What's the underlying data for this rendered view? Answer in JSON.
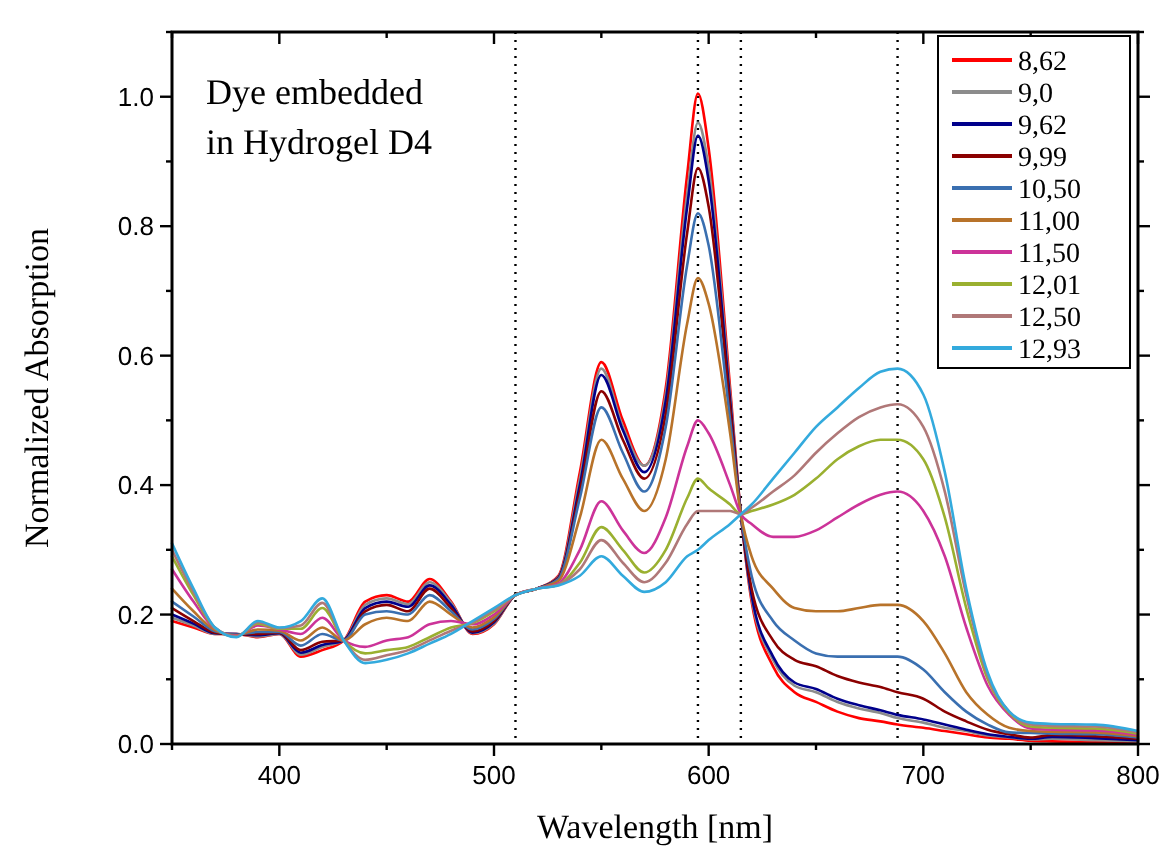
{
  "chart_data": {
    "type": "line",
    "xlabel": "Wavelength [nm]",
    "ylabel": "Normalized Absorption",
    "annotations": [
      "Dye embedded\nin Hydrogel D4"
    ],
    "xlim": [
      350,
      800
    ],
    "ylim": [
      0,
      1.1
    ],
    "xticks": [
      {
        "value": 350,
        "label": null
      },
      400,
      {
        "value": 450,
        "label": null
      },
      500,
      {
        "value": 550,
        "label": null
      },
      600,
      {
        "value": 650,
        "label": null
      },
      700,
      {
        "value": 750,
        "label": null
      },
      800
    ],
    "yticks": [
      {
        "value": 0,
        "label": "0.0"
      },
      {
        "value": 0.1,
        "label": null
      },
      0.2,
      {
        "value": 0.3,
        "label": null
      },
      0.4,
      {
        "value": 0.5,
        "label": null
      },
      0.6,
      {
        "value": 0.7,
        "label": null
      },
      0.8,
      {
        "value": 0.9,
        "label": null
      },
      {
        "value": 1.0,
        "label": "1.0"
      },
      {
        "value": 1.1,
        "label": null
      }
    ],
    "grid": false,
    "legend": "top right",
    "marker": "none",
    "line_style": "solid",
    "ref_lines": [
      {
        "axis": "x",
        "value": 510,
        "color": "#000000",
        "line_style": "dotted"
      },
      {
        "axis": "x",
        "value": 595,
        "color": "#000000",
        "line_style": "dotted"
      },
      {
        "axis": "x",
        "value": 615,
        "color": "#000000",
        "line_style": "dotted"
      },
      {
        "axis": "x",
        "value": 688,
        "color": "#000000",
        "line_style": "dotted"
      }
    ],
    "x": [
      350,
      360,
      370,
      380,
      390,
      400,
      410,
      420,
      430,
      440,
      450,
      460,
      470,
      480,
      490,
      500,
      510,
      520,
      530,
      540,
      550,
      560,
      570,
      580,
      590,
      595,
      600,
      610,
      615,
      620,
      630,
      640,
      650,
      660,
      670,
      680,
      688,
      700,
      710,
      720,
      730,
      740,
      750,
      760,
      780,
      800
    ],
    "series": [
      {
        "name": "8,62",
        "color": "#ff0000",
        "values": [
          0.19,
          0.18,
          0.17,
          0.17,
          0.165,
          0.17,
          0.135,
          0.145,
          0.16,
          0.22,
          0.23,
          0.22,
          0.255,
          0.22,
          0.17,
          0.185,
          0.23,
          0.24,
          0.26,
          0.42,
          0.59,
          0.5,
          0.43,
          0.55,
          0.88,
          1.005,
          0.92,
          0.55,
          0.355,
          0.22,
          0.12,
          0.08,
          0.065,
          0.05,
          0.04,
          0.035,
          0.03,
          0.025,
          0.02,
          0.015,
          0.01,
          0.008,
          0.005,
          0.004,
          0.003,
          0.001
        ]
      },
      {
        "name": "9,0",
        "color": "#8c8c8c",
        "values": [
          0.195,
          0.183,
          0.17,
          0.17,
          0.166,
          0.17,
          0.138,
          0.15,
          0.16,
          0.215,
          0.225,
          0.216,
          0.25,
          0.218,
          0.171,
          0.186,
          0.23,
          0.24,
          0.258,
          0.41,
          0.58,
          0.49,
          0.43,
          0.54,
          0.85,
          0.96,
          0.89,
          0.54,
          0.355,
          0.225,
          0.13,
          0.09,
          0.08,
          0.065,
          0.055,
          0.048,
          0.04,
          0.033,
          0.025,
          0.02,
          0.013,
          0.01,
          0.007,
          0.008,
          0.006,
          0.004
        ]
      },
      {
        "name": "9,62",
        "color": "#00008b",
        "values": [
          0.2,
          0.186,
          0.171,
          0.17,
          0.168,
          0.171,
          0.141,
          0.153,
          0.16,
          0.21,
          0.22,
          0.212,
          0.245,
          0.215,
          0.172,
          0.188,
          0.23,
          0.24,
          0.257,
          0.4,
          0.57,
          0.485,
          0.42,
          0.53,
          0.83,
          0.94,
          0.87,
          0.53,
          0.355,
          0.23,
          0.135,
          0.095,
          0.085,
          0.07,
          0.06,
          0.052,
          0.045,
          0.038,
          0.03,
          0.022,
          0.015,
          0.011,
          0.008,
          0.011,
          0.009,
          0.006
        ]
      },
      {
        "name": "9,99",
        "color": "#8b0000",
        "values": [
          0.21,
          0.19,
          0.172,
          0.169,
          0.17,
          0.172,
          0.145,
          0.158,
          0.16,
          0.205,
          0.215,
          0.205,
          0.24,
          0.21,
          0.174,
          0.19,
          0.23,
          0.24,
          0.256,
          0.39,
          0.545,
          0.47,
          0.41,
          0.51,
          0.79,
          0.89,
          0.83,
          0.52,
          0.355,
          0.24,
          0.16,
          0.13,
          0.12,
          0.105,
          0.095,
          0.088,
          0.08,
          0.07,
          0.05,
          0.035,
          0.022,
          0.015,
          0.01,
          0.014,
          0.012,
          0.008
        ]
      },
      {
        "name": "10,50",
        "color": "#3a6fb0",
        "values": [
          0.22,
          0.197,
          0.174,
          0.169,
          0.173,
          0.173,
          0.152,
          0.17,
          0.16,
          0.2,
          0.205,
          0.2,
          0.23,
          0.205,
          0.177,
          0.193,
          0.23,
          0.24,
          0.255,
          0.38,
          0.52,
          0.45,
          0.39,
          0.49,
          0.74,
          0.82,
          0.77,
          0.5,
          0.355,
          0.26,
          0.19,
          0.16,
          0.14,
          0.135,
          0.135,
          0.135,
          0.135,
          0.115,
          0.08,
          0.05,
          0.03,
          0.018,
          0.017,
          0.016,
          0.015,
          0.01
        ]
      },
      {
        "name": "11,00",
        "color": "#b8732a",
        "values": [
          0.24,
          0.205,
          0.176,
          0.168,
          0.177,
          0.175,
          0.16,
          0.18,
          0.16,
          0.185,
          0.195,
          0.19,
          0.22,
          0.2,
          0.18,
          0.196,
          0.23,
          0.24,
          0.252,
          0.35,
          0.47,
          0.41,
          0.36,
          0.44,
          0.65,
          0.72,
          0.68,
          0.48,
          0.355,
          0.29,
          0.24,
          0.21,
          0.205,
          0.205,
          0.21,
          0.215,
          0.215,
          0.19,
          0.14,
          0.08,
          0.045,
          0.025,
          0.02,
          0.019,
          0.018,
          0.012
        ]
      },
      {
        "name": "11,50",
        "color": "#cc3399",
        "values": [
          0.27,
          0.22,
          0.178,
          0.167,
          0.183,
          0.177,
          0.17,
          0.195,
          0.16,
          0.15,
          0.16,
          0.165,
          0.185,
          0.19,
          0.185,
          0.2,
          0.23,
          0.24,
          0.248,
          0.3,
          0.375,
          0.33,
          0.295,
          0.35,
          0.46,
          0.5,
          0.48,
          0.4,
          0.355,
          0.34,
          0.32,
          0.32,
          0.33,
          0.35,
          0.37,
          0.385,
          0.39,
          0.36,
          0.29,
          0.18,
          0.09,
          0.045,
          0.024,
          0.022,
          0.021,
          0.014
        ]
      },
      {
        "name": "12,01",
        "color": "#9ab030",
        "values": [
          0.29,
          0.23,
          0.179,
          0.166,
          0.186,
          0.178,
          0.178,
          0.21,
          0.16,
          0.14,
          0.145,
          0.15,
          0.165,
          0.18,
          0.187,
          0.205,
          0.23,
          0.24,
          0.246,
          0.28,
          0.335,
          0.3,
          0.265,
          0.3,
          0.38,
          0.41,
          0.395,
          0.37,
          0.355,
          0.36,
          0.37,
          0.385,
          0.41,
          0.44,
          0.46,
          0.47,
          0.47,
          0.44,
          0.35,
          0.21,
          0.1,
          0.048,
          0.027,
          0.025,
          0.024,
          0.016
        ]
      },
      {
        "name": "12,50",
        "color": "#b07878",
        "values": [
          0.3,
          0.235,
          0.18,
          0.166,
          0.188,
          0.179,
          0.183,
          0.218,
          0.16,
          0.13,
          0.137,
          0.145,
          0.16,
          0.175,
          0.188,
          0.207,
          0.23,
          0.24,
          0.246,
          0.27,
          0.315,
          0.28,
          0.25,
          0.28,
          0.34,
          0.36,
          0.36,
          0.36,
          0.355,
          0.365,
          0.39,
          0.415,
          0.45,
          0.48,
          0.505,
          0.52,
          0.525,
          0.49,
          0.39,
          0.23,
          0.105,
          0.05,
          0.03,
          0.028,
          0.027,
          0.018
        ]
      },
      {
        "name": "12,93",
        "color": "#33aadd",
        "values": [
          0.31,
          0.24,
          0.18,
          0.165,
          0.19,
          0.18,
          0.19,
          0.225,
          0.16,
          0.125,
          0.13,
          0.14,
          0.155,
          0.17,
          0.19,
          0.21,
          0.23,
          0.24,
          0.245,
          0.26,
          0.29,
          0.26,
          0.235,
          0.25,
          0.29,
          0.3,
          0.315,
          0.34,
          0.355,
          0.37,
          0.41,
          0.45,
          0.49,
          0.52,
          0.55,
          0.575,
          0.58,
          0.54,
          0.42,
          0.24,
          0.11,
          0.05,
          0.033,
          0.031,
          0.03,
          0.02
        ]
      }
    ]
  }
}
